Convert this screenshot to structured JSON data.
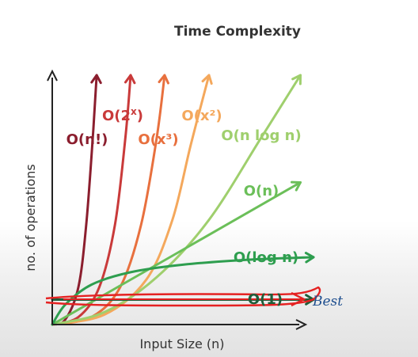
{
  "chart_data": {
    "type": "line",
    "title": "Time Complexity",
    "xlabel": "Input Size (n)",
    "ylabel": "no. of operations",
    "grid": false,
    "legend": "none",
    "xlim": [
      0,
      10
    ],
    "ylim": [
      0,
      10
    ],
    "series": [
      {
        "name": "O(n!)",
        "color": "#8b1e2e",
        "x": [
          0,
          0.5,
          1.0,
          1.3,
          1.55,
          1.7
        ],
        "y": [
          0,
          0.2,
          1.5,
          4.0,
          7.5,
          10.0
        ]
      },
      {
        "name": "O(2^x)",
        "color": "#c93a3a",
        "x": [
          0,
          1.0,
          1.8,
          2.4,
          2.8,
          3.0
        ],
        "y": [
          0,
          0.3,
          1.5,
          4.0,
          7.5,
          10.0
        ]
      },
      {
        "name": "O(x³)",
        "color": "#e8703e",
        "x": [
          0,
          1.5,
          2.6,
          3.4,
          4.0,
          4.3
        ],
        "y": [
          0,
          0.3,
          1.5,
          4.0,
          7.5,
          10.0
        ]
      },
      {
        "name": "O(x²)",
        "color": "#f4a85c",
        "x": [
          0,
          2.0,
          3.6,
          4.6,
          5.3,
          6.0
        ],
        "y": [
          0,
          0.4,
          1.8,
          4.2,
          7.2,
          10.0
        ]
      },
      {
        "name": "O(n log n)",
        "color": "#9fcf6d",
        "x": [
          0,
          2.0,
          4.0,
          6.0,
          8.0,
          9.5
        ],
        "y": [
          0,
          0.5,
          1.9,
          4.2,
          7.5,
          10.0
        ]
      },
      {
        "name": "O(n)",
        "color": "#6bbf59",
        "x": [
          0,
          9.5
        ],
        "y": [
          0,
          5.7
        ]
      },
      {
        "name": "O(log n)",
        "color": "#2e9e4f",
        "x": [
          0,
          0.5,
          1.5,
          3.0,
          5.0,
          7.5,
          10.0
        ],
        "y": [
          0,
          0.8,
          1.6,
          2.1,
          2.4,
          2.6,
          2.7
        ]
      },
      {
        "name": "O(1)",
        "color": "#1e5e3a",
        "x": [
          0,
          10.0
        ],
        "y": [
          1.0,
          1.0
        ]
      }
    ],
    "annotations": [
      {
        "text": "Best",
        "color": "#e02020",
        "target": "O(1)"
      }
    ]
  }
}
